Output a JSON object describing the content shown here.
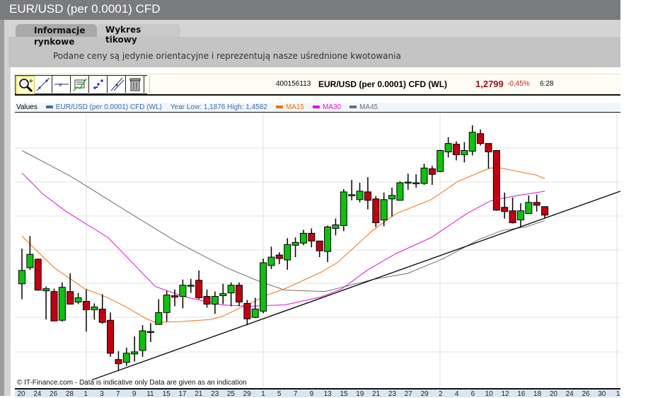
{
  "window": {
    "title": "EUR/USD (per 0.0001) CFD"
  },
  "tabs": [
    {
      "label_line1": "Informacje",
      "label_line2": "rynkowe"
    },
    {
      "label": "Wykres tikowy"
    }
  ],
  "notice": "Podane ceny są jedynie orientacyjne i reprezentują nasze uśrednione kwotowania",
  "toolbar": {
    "tools": [
      "zoom-in-icon",
      "draw-line-icon",
      "horizontal-line-icon",
      "indicators-icon",
      "scatter-tool-icon",
      "parallel-line-icon",
      "trash-icon"
    ]
  },
  "quote": {
    "id": "400156113",
    "instrument": "EUR/USD (per 0.0001) CFD (WL)",
    "price": "1,2799",
    "change": "-0,45%",
    "time": "6:28",
    "price_color": "#a0101c"
  },
  "legend": {
    "values_label": "Values",
    "series_label": "EUR/USD (per 0.0001) CFD (WL)",
    "year_range": "Year Low: 1,1876 High: 1,4582",
    "ma15": "MA15",
    "ma30": "MA30",
    "ma45": "MA45",
    "colors": {
      "series": "#3b6aa8",
      "ma15": "#f07010",
      "ma30": "#e010e0",
      "ma45": "#707070",
      "up": "#10c010",
      "down": "#c00010"
    }
  },
  "copyright": "© IT-Finance.com - Data is indicative only Data are given as an indication",
  "chart_data": {
    "type": "candlestick",
    "ylim": [
      1.2059,
      1.3234
    ],
    "x_visible_candles": 75.6,
    "x_tick_labels": [
      "20",
      "24",
      "26",
      "28",
      "1",
      "3",
      "7",
      "9",
      "11",
      "15",
      "17",
      "21",
      "23",
      "25",
      "29",
      "1",
      "5",
      "7",
      "9",
      "13",
      "15",
      "19",
      "21",
      "23",
      "27",
      "29",
      "2",
      "4",
      "6",
      "10",
      "12",
      "16",
      "18",
      "20",
      "24",
      "26",
      "30",
      "1"
    ],
    "candles_ohlc": [
      [
        1.2505,
        1.2655,
        1.2439,
        1.2562
      ],
      [
        1.2574,
        1.2709,
        1.2565,
        1.2631
      ],
      [
        1.261,
        1.2613,
        1.2475,
        1.2478
      ],
      [
        1.2475,
        1.2493,
        1.2352,
        1.2484
      ],
      [
        1.2472,
        1.2484,
        1.2346,
        1.2346
      ],
      [
        1.2349,
        1.2511,
        1.2343,
        1.249
      ],
      [
        1.2472,
        1.255,
        1.2418,
        1.2418
      ],
      [
        1.2427,
        1.2466,
        1.2418,
        1.2445
      ],
      [
        1.243,
        1.2481,
        1.2301,
        1.2394
      ],
      [
        1.2394,
        1.2421,
        1.2352,
        1.2406
      ],
      [
        1.2397,
        1.246,
        1.2334,
        1.234
      ],
      [
        1.2349,
        1.2382,
        1.2193,
        1.2208
      ],
      [
        1.2181,
        1.2217,
        1.2133,
        1.2163
      ],
      [
        1.2169,
        1.2232,
        1.2154,
        1.2208
      ],
      [
        1.2205,
        1.228,
        1.2172,
        1.2214
      ],
      [
        1.222,
        1.2328,
        1.2193,
        1.2304
      ],
      [
        1.2301,
        1.2337,
        1.2256,
        1.2301
      ],
      [
        1.2331,
        1.2439,
        1.2331,
        1.2382
      ],
      [
        1.2382,
        1.2475,
        1.2343,
        1.2457
      ],
      [
        1.2454,
        1.2481,
        1.2409,
        1.2448
      ],
      [
        1.2451,
        1.2523,
        1.24,
        1.2499
      ],
      [
        1.2499,
        1.2526,
        1.2466,
        1.2499
      ],
      [
        1.252,
        1.2562,
        1.2439,
        1.2445
      ],
      [
        1.2451,
        1.2481,
        1.2403,
        1.2418
      ],
      [
        1.2418,
        1.2472,
        1.2376,
        1.2451
      ],
      [
        1.2454,
        1.2505,
        1.2418,
        1.2463
      ],
      [
        1.2466,
        1.2511,
        1.2409,
        1.2499
      ],
      [
        1.2499,
        1.2511,
        1.2409,
        1.2427
      ],
      [
        1.2421,
        1.2436,
        1.2328,
        1.2355
      ],
      [
        1.2361,
        1.2445,
        1.2358,
        1.2397
      ],
      [
        1.2388,
        1.2613,
        1.2379,
        1.2595
      ],
      [
        1.2583,
        1.2664,
        1.2568,
        1.2619
      ],
      [
        1.2628,
        1.264,
        1.2589,
        1.2613
      ],
      [
        1.2607,
        1.27,
        1.2565,
        1.2673
      ],
      [
        1.267,
        1.2703,
        1.2619,
        1.2682
      ],
      [
        1.2679,
        1.2736,
        1.267,
        1.2721
      ],
      [
        1.2721,
        1.2742,
        1.2661,
        1.2688
      ],
      [
        1.2688,
        1.2688,
        1.2619,
        1.2646
      ],
      [
        1.2643,
        1.2754,
        1.2598,
        1.2748
      ],
      [
        1.2742,
        1.2784,
        1.2712,
        1.2757
      ],
      [
        1.2754,
        1.291,
        1.273,
        1.2898
      ],
      [
        1.2886,
        1.2949,
        1.2862,
        1.2886
      ],
      [
        1.2865,
        1.2937,
        1.2853,
        1.2901
      ],
      [
        1.2898,
        1.2961,
        1.2823,
        1.2862
      ],
      [
        1.2868,
        1.288,
        1.2748,
        1.2766
      ],
      [
        1.2778,
        1.2895,
        1.2751,
        1.2865
      ],
      [
        1.2868,
        1.2916,
        1.2793,
        1.2883
      ],
      [
        1.2862,
        1.2943,
        1.2862,
        1.2937
      ],
      [
        1.294,
        1.2976,
        1.2907,
        1.294
      ],
      [
        1.2937,
        1.2973,
        1.2916,
        1.2937
      ],
      [
        1.2934,
        1.3018,
        1.2928,
        1.3
      ],
      [
        1.2997,
        1.3009,
        1.2928,
        1.2973
      ],
      [
        1.2985,
        1.3078,
        1.2982,
        1.3075
      ],
      [
        1.3069,
        1.3132,
        1.3045,
        1.3105
      ],
      [
        1.3102,
        1.3114,
        1.3033,
        1.3057
      ],
      [
        1.3057,
        1.3111,
        1.3024,
        1.3075
      ],
      [
        1.3072,
        1.3183,
        1.3054,
        1.3153
      ],
      [
        1.3147,
        1.3165,
        1.3096,
        1.3105
      ],
      [
        1.3105,
        1.3105,
        1.2997,
        1.3069
      ],
      [
        1.3075,
        1.3075,
        1.2817,
        1.282
      ],
      [
        1.2832,
        1.2895,
        1.2784,
        1.2814
      ],
      [
        1.2817,
        1.2874,
        1.2763,
        1.2766
      ],
      [
        1.2778,
        1.285,
        1.2748,
        1.2817
      ],
      [
        1.2805,
        1.2883,
        1.2805,
        1.2853
      ],
      [
        1.2853,
        1.2886,
        1.2814,
        1.2841
      ],
      [
        1.2835,
        1.2835,
        1.2784,
        1.2799
      ]
    ],
    "series": [
      {
        "name": "MA15",
        "points": [
          [
            1,
            1.2709
          ],
          [
            5,
            1.2574
          ],
          [
            8.8,
            1.2484
          ],
          [
            11.7,
            1.2445
          ],
          [
            13.8,
            1.2409
          ],
          [
            16.5,
            1.2355
          ],
          [
            17.6,
            1.234
          ],
          [
            20.5,
            1.2343
          ],
          [
            24.4,
            1.2352
          ],
          [
            25.8,
            1.2364
          ],
          [
            28.2,
            1.2403
          ],
          [
            31.7,
            1.246
          ],
          [
            33.7,
            1.2484
          ],
          [
            38.1,
            1.2553
          ],
          [
            40.2,
            1.2595
          ],
          [
            44.6,
            1.2733
          ],
          [
            47.5,
            1.2805
          ],
          [
            51.9,
            1.2865
          ],
          [
            55.2,
            1.2943
          ],
          [
            59.2,
            1.3
          ],
          [
            60.5,
            1.3
          ],
          [
            64.9,
            1.297
          ],
          [
            66,
            1.2955
          ]
        ]
      },
      {
        "name": "MA30",
        "points": [
          [
            1,
            1.2979
          ],
          [
            3.6,
            1.2889
          ],
          [
            6.5,
            1.2814
          ],
          [
            11.7,
            1.2703
          ],
          [
            17.6,
            1.2493
          ],
          [
            21.4,
            1.2448
          ],
          [
            25.8,
            1.2415
          ],
          [
            29.3,
            1.2409
          ],
          [
            33.7,
            1.2415
          ],
          [
            38.1,
            1.2448
          ],
          [
            40.8,
            1.2484
          ],
          [
            44,
            1.2565
          ],
          [
            47.5,
            1.2634
          ],
          [
            51.9,
            1.2703
          ],
          [
            56.3,
            1.2805
          ],
          [
            59.2,
            1.2859
          ],
          [
            62.2,
            1.288
          ],
          [
            66,
            1.2901
          ]
        ]
      },
      {
        "name": "MA45",
        "points": [
          [
            1,
            1.3075
          ],
          [
            7.1,
            1.2964
          ],
          [
            14.1,
            1.2814
          ],
          [
            20.5,
            1.2679
          ],
          [
            26.4,
            1.2574
          ],
          [
            30.6,
            1.2514
          ],
          [
            33.7,
            1.2478
          ],
          [
            38.7,
            1.2472
          ],
          [
            44.6,
            1.2523
          ],
          [
            49,
            1.255
          ],
          [
            53.4,
            1.2613
          ],
          [
            57.8,
            1.2694
          ],
          [
            60.7,
            1.2733
          ],
          [
            63.6,
            1.2748
          ],
          [
            66,
            1.2775
          ]
        ]
      }
    ],
    "trendline": [
      [
        9.7,
        1.2094
      ],
      [
        75.4,
        1.2901
      ]
    ]
  }
}
